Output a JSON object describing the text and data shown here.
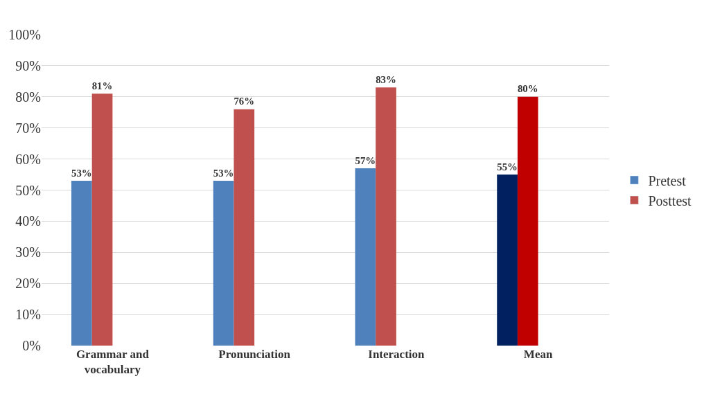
{
  "chart_data": {
    "type": "bar",
    "categories": [
      "Grammar and\nvocabulary",
      "Pronunciation",
      "Interaction",
      "Mean"
    ],
    "series": [
      {
        "name": "Pretest",
        "color": "#4f81bd",
        "colors": [
          "#4f81bd",
          "#4f81bd",
          "#4f81bd",
          "#002060"
        ],
        "values": [
          53,
          53,
          57,
          55
        ],
        "value_labels": [
          "53%",
          "53%",
          "57%",
          "55%"
        ]
      },
      {
        "name": "Posttest",
        "color": "#c0504d",
        "colors": [
          "#c0504d",
          "#c0504d",
          "#c0504d",
          "#c00000"
        ],
        "values": [
          81,
          76,
          83,
          80
        ],
        "value_labels": [
          "81%",
          "76%",
          "83%",
          "80%"
        ]
      }
    ],
    "ylim": [
      0,
      100
    ],
    "yticks": [
      {
        "value": 0,
        "label": "0%"
      },
      {
        "value": 10,
        "label": "10%"
      },
      {
        "value": 20,
        "label": "20%"
      },
      {
        "value": 30,
        "label": "30%"
      },
      {
        "value": 40,
        "label": "40%"
      },
      {
        "value": 50,
        "label": "50%"
      },
      {
        "value": 60,
        "label": "60%"
      },
      {
        "value": 70,
        "label": "70%"
      },
      {
        "value": 80,
        "label": "80%"
      },
      {
        "value": 90,
        "label": "90%"
      },
      {
        "value": 100,
        "label": "100%"
      }
    ],
    "grid": "y",
    "legend": "right"
  }
}
